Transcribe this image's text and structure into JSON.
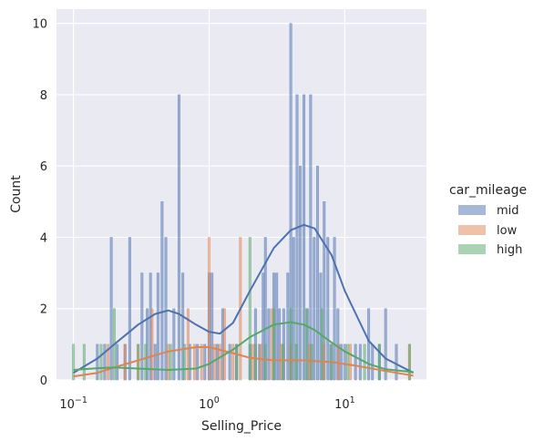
{
  "chart_data": {
    "type": "histogram",
    "xlabel": "Selling_Price",
    "ylabel": "Count",
    "xscale": "log",
    "xlim": [
      0.075,
      40
    ],
    "ylim": [
      0,
      10.4
    ],
    "yticks": [
      0,
      2,
      4,
      6,
      8,
      10
    ],
    "xticks": [
      {
        "value": 0.1,
        "base": "10",
        "exp": "−1"
      },
      {
        "value": 1,
        "base": "10",
        "exp": "0"
      },
      {
        "value": 10,
        "base": "10",
        "exp": "1"
      }
    ],
    "grid": true,
    "legend": {
      "title": "car_mileage",
      "position": "right"
    },
    "series": [
      {
        "name": "mid",
        "color": "#4c72b0",
        "bins": [
          [
            0.15,
            1
          ],
          [
            0.17,
            1
          ],
          [
            0.19,
            4
          ],
          [
            0.21,
            1
          ],
          [
            0.24,
            1
          ],
          [
            0.26,
            4
          ],
          [
            0.32,
            3
          ],
          [
            0.35,
            2
          ],
          [
            0.37,
            3
          ],
          [
            0.4,
            1
          ],
          [
            0.42,
            3
          ],
          [
            0.45,
            5
          ],
          [
            0.48,
            4
          ],
          [
            0.55,
            2
          ],
          [
            0.6,
            8
          ],
          [
            0.64,
            3
          ],
          [
            0.72,
            1
          ],
          [
            0.82,
            1
          ],
          [
            0.93,
            1
          ],
          [
            1.0,
            3
          ],
          [
            1.05,
            3
          ],
          [
            1.15,
            1
          ],
          [
            1.26,
            2
          ],
          [
            1.42,
            1
          ],
          [
            1.59,
            1
          ],
          [
            2.0,
            1
          ],
          [
            2.2,
            2
          ],
          [
            2.35,
            1
          ],
          [
            2.5,
            3
          ],
          [
            2.6,
            4
          ],
          [
            2.75,
            2
          ],
          [
            3.0,
            3
          ],
          [
            3.15,
            3
          ],
          [
            3.3,
            2
          ],
          [
            3.55,
            2
          ],
          [
            3.8,
            3
          ],
          [
            4.0,
            10
          ],
          [
            4.2,
            4
          ],
          [
            4.45,
            8
          ],
          [
            4.7,
            6
          ],
          [
            5.0,
            8
          ],
          [
            5.3,
            2
          ],
          [
            5.6,
            8
          ],
          [
            5.95,
            4
          ],
          [
            6.3,
            6
          ],
          [
            6.65,
            3
          ],
          [
            7.05,
            5
          ],
          [
            7.5,
            4
          ],
          [
            7.9,
            1
          ],
          [
            8.4,
            4
          ],
          [
            8.9,
            2
          ],
          [
            9.4,
            1
          ],
          [
            10.0,
            1
          ],
          [
            12.0,
            1
          ],
          [
            13.0,
            1
          ],
          [
            15.0,
            2
          ],
          [
            16.0,
            1
          ],
          [
            18.0,
            1
          ],
          [
            20.0,
            2
          ],
          [
            24.0,
            1
          ]
        ],
        "kde": [
          [
            0.1,
            0.2
          ],
          [
            0.15,
            0.6
          ],
          [
            0.2,
            1.0
          ],
          [
            0.3,
            1.55
          ],
          [
            0.4,
            1.85
          ],
          [
            0.5,
            1.95
          ],
          [
            0.6,
            1.85
          ],
          [
            0.8,
            1.55
          ],
          [
            1.0,
            1.35
          ],
          [
            1.2,
            1.3
          ],
          [
            1.5,
            1.6
          ],
          [
            2.0,
            2.5
          ],
          [
            3.0,
            3.7
          ],
          [
            4.0,
            4.2
          ],
          [
            5.0,
            4.35
          ],
          [
            6.0,
            4.25
          ],
          [
            8.0,
            3.5
          ],
          [
            10.0,
            2.5
          ],
          [
            15.0,
            1.1
          ],
          [
            20.0,
            0.6
          ],
          [
            32.0,
            0.2
          ]
        ]
      },
      {
        "name": "low",
        "color": "#dd8452",
        "bins": [
          [
            0.18,
            1
          ],
          [
            0.24,
            1
          ],
          [
            0.3,
            1
          ],
          [
            0.38,
            2
          ],
          [
            0.5,
            1
          ],
          [
            0.7,
            2
          ],
          [
            0.78,
            1
          ],
          [
            0.88,
            1
          ],
          [
            1.0,
            4
          ],
          [
            1.1,
            1
          ],
          [
            1.2,
            1
          ],
          [
            1.3,
            2
          ],
          [
            1.5,
            1
          ],
          [
            1.7,
            4
          ],
          [
            2.1,
            1
          ],
          [
            2.4,
            1
          ],
          [
            2.9,
            2
          ],
          [
            3.4,
            1
          ],
          [
            4.0,
            1
          ],
          [
            5.5,
            1
          ],
          [
            7.0,
            1
          ],
          [
            9.0,
            1
          ],
          [
            11.0,
            1
          ],
          [
            30.0,
            1
          ]
        ],
        "kde": [
          [
            0.1,
            0.1
          ],
          [
            0.15,
            0.2
          ],
          [
            0.2,
            0.35
          ],
          [
            0.3,
            0.55
          ],
          [
            0.5,
            0.8
          ],
          [
            0.8,
            0.92
          ],
          [
            1.0,
            0.92
          ],
          [
            1.5,
            0.75
          ],
          [
            2.0,
            0.62
          ],
          [
            3.0,
            0.55
          ],
          [
            5.0,
            0.55
          ],
          [
            8.0,
            0.5
          ],
          [
            12.0,
            0.4
          ],
          [
            20.0,
            0.25
          ],
          [
            32.0,
            0.12
          ]
        ]
      },
      {
        "name": "high",
        "color": "#55a868",
        "bins": [
          [
            0.1,
            1
          ],
          [
            0.12,
            1
          ],
          [
            0.16,
            1
          ],
          [
            0.2,
            2
          ],
          [
            0.3,
            1
          ],
          [
            0.34,
            1
          ],
          [
            0.52,
            1
          ],
          [
            0.66,
            1
          ],
          [
            1.6,
            1
          ],
          [
            2.0,
            4
          ],
          [
            2.2,
            1
          ],
          [
            2.6,
            1
          ],
          [
            3.0,
            2
          ],
          [
            3.5,
            1
          ],
          [
            4.0,
            2
          ],
          [
            4.4,
            1
          ],
          [
            5.2,
            2
          ],
          [
            5.7,
            1
          ],
          [
            6.8,
            2
          ],
          [
            8.0,
            1
          ],
          [
            10.5,
            1
          ],
          [
            14.0,
            1
          ],
          [
            18.0,
            1
          ],
          [
            30.0,
            1
          ]
        ],
        "kde": [
          [
            0.1,
            0.28
          ],
          [
            0.15,
            0.33
          ],
          [
            0.2,
            0.35
          ],
          [
            0.3,
            0.32
          ],
          [
            0.5,
            0.28
          ],
          [
            0.8,
            0.32
          ],
          [
            1.0,
            0.45
          ],
          [
            1.5,
            0.85
          ],
          [
            2.0,
            1.2
          ],
          [
            3.0,
            1.55
          ],
          [
            4.0,
            1.62
          ],
          [
            5.0,
            1.55
          ],
          [
            6.0,
            1.4
          ],
          [
            8.0,
            1.05
          ],
          [
            10.0,
            0.8
          ],
          [
            15.0,
            0.45
          ],
          [
            20.0,
            0.3
          ],
          [
            32.0,
            0.22
          ]
        ]
      }
    ]
  }
}
